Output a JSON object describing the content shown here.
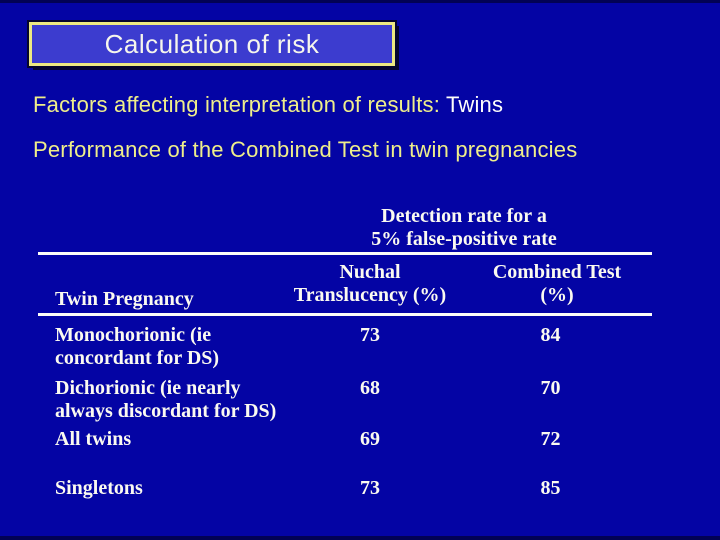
{
  "slide": {
    "title": "Calculation of risk",
    "line1_prefix": "Factors affecting interpretation of results: ",
    "line1_highlight": "Twins",
    "line2": "Performance of the Combined Test in twin pregnancies"
  },
  "table": {
    "span_header_line1": "Detection rate for a",
    "span_header_line2": "5% false-positive rate",
    "row_header": "Twin Pregnancy",
    "col_nt_line1": "Nuchal",
    "col_nt_line2": "Translucency (%)",
    "col_ct_line1": "Combined Test",
    "col_ct_line2": "(%)",
    "rows": [
      {
        "label_line1": "Monochorionic (ie",
        "label_line2": "concordant for DS)",
        "nt": "73",
        "ct": "84"
      },
      {
        "label_line1": "Dichorionic (ie nearly",
        "label_line2": "always discordant for DS)",
        "nt": "68",
        "ct": "70"
      },
      {
        "label_line1": "All twins",
        "label_line2": "",
        "nt": "69",
        "ct": "72"
      },
      {
        "label_line1": "Singletons",
        "label_line2": "",
        "nt": "73",
        "ct": "85"
      }
    ]
  },
  "colors": {
    "background": "#0404A4",
    "title_box_fill": "#3C3CCF",
    "title_box_border": "#EDE982",
    "body_text_yellow": "#EFEE8A",
    "highlight_white": "#FEFEFB",
    "table_text": "#FBFAF0",
    "rule": "#FDFDF8"
  }
}
